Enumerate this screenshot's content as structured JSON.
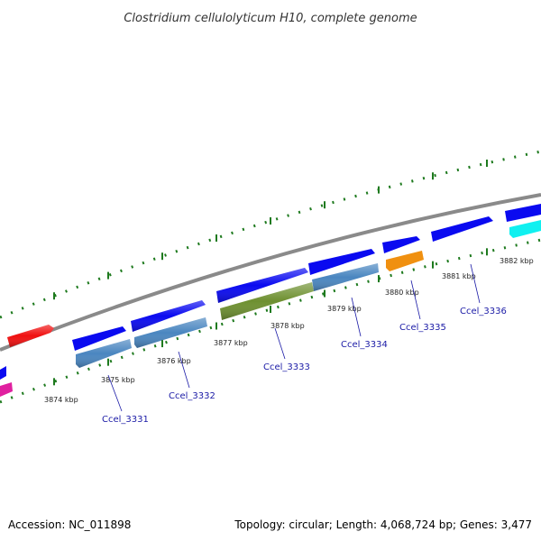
{
  "title": "Clostridium cellulolyticum H10, complete genome",
  "footer": {
    "accession": "Accession: NC_011898",
    "summary": "Topology: circular; Length: 4,068,724 bp; Genes: 3,477"
  },
  "backbone_color": "#8a8a8a",
  "tick_color": "#1e7a1e",
  "ticks": [
    "3874 kbp",
    "3875 kbp",
    "3876 kbp",
    "3877 kbp",
    "3878 kbp",
    "3879 kbp",
    "3880 kbp",
    "3881 kbp",
    "3882 kbp"
  ],
  "gene_labels": [
    "Ccel_3331",
    "Ccel_3332",
    "Ccel_3333",
    "Ccel_3334",
    "Ccel_3335",
    "Ccel_3336"
  ],
  "feature_colors": {
    "cds_forward": "#0a0af0",
    "cds_reverse": "#4a86c0",
    "red": "#f01010",
    "magenta": "#e020a0",
    "olive": "#6e9030",
    "orange": "#f09010",
    "cyan": "#10f0f0"
  }
}
